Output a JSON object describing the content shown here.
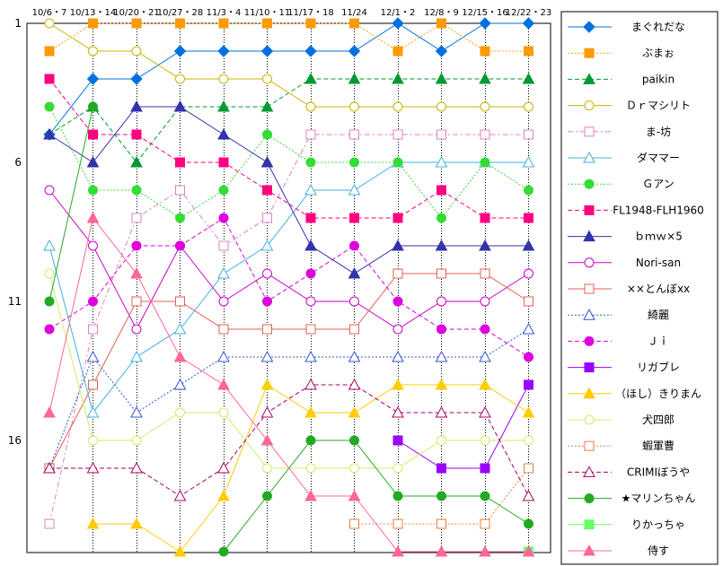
{
  "chart_data": {
    "type": "line",
    "y_axis": {
      "reversed": true,
      "min": 1,
      "max": 20,
      "ticks": [
        1,
        6,
        11,
        16
      ]
    },
    "x_labels": [
      "10/6・7",
      "10/13・14",
      "10/20・21",
      "10/27・28",
      "11/3・4",
      "11/10・11",
      "11/17・18",
      "11/24",
      "12/1・2",
      "12/8・9",
      "12/15・16",
      "12/22・23"
    ],
    "grid": "vertical dotted lines",
    "legend_position": "right",
    "series": [
      {
        "name": "まぐれだな",
        "color": "#0070e0",
        "marker": "diamond",
        "filled": true,
        "dash": "solid",
        "values": [
          5,
          3,
          3,
          2,
          2,
          2,
          2,
          2,
          1,
          2,
          1,
          1
        ]
      },
      {
        "name": "ぶまぉ",
        "color": "#ff9900",
        "marker": "square",
        "filled": true,
        "dash": "dotted",
        "values": [
          2,
          1,
          1,
          1,
          1,
          1,
          1,
          1,
          2,
          1,
          2,
          2
        ]
      },
      {
        "name": "paikin",
        "color": "#009933",
        "marker": "triangle",
        "filled": true,
        "dash": "dashed",
        "values": [
          5,
          4,
          6,
          4,
          4,
          4,
          3,
          3,
          3,
          3,
          3,
          3
        ]
      },
      {
        "name": "Ｄｒマシリト",
        "color": "#c8b400",
        "marker": "circle",
        "filled": false,
        "dash": "solid",
        "values": [
          1,
          2,
          2,
          3,
          3,
          3,
          4,
          4,
          4,
          4,
          4,
          4
        ]
      },
      {
        "name": "ま-坊",
        "color": "#e080c0",
        "marker": "square",
        "filled": false,
        "dash": "dashdot",
        "values": [
          19,
          12,
          8,
          7,
          9,
          8,
          5,
          5,
          5,
          5,
          5,
          5
        ]
      },
      {
        "name": "ダママー",
        "color": "#40b0e0",
        "marker": "triangle",
        "filled": false,
        "dash": "solid",
        "values": [
          9,
          15,
          13,
          12,
          10,
          9,
          7,
          7,
          6,
          6,
          6,
          6
        ]
      },
      {
        "name": "Ｇアン",
        "color": "#33dd33",
        "marker": "circle",
        "filled": true,
        "dash": "dotted",
        "values": [
          4,
          7,
          7,
          8,
          7,
          5,
          6,
          6,
          6,
          8,
          6,
          7
        ]
      },
      {
        "name": "FL1948-FLH1960",
        "color": "#ff0080",
        "marker": "square",
        "filled": true,
        "dash": "dashed",
        "values": [
          3,
          5,
          5,
          6,
          6,
          7,
          8,
          8,
          8,
          7,
          8,
          8
        ]
      },
      {
        "name": "ｂｍｗ×5",
        "color": "#3333aa",
        "marker": "triangle",
        "filled": true,
        "dash": "solid",
        "values": [
          5,
          6,
          4,
          4,
          5,
          6,
          9,
          10,
          9,
          9,
          9,
          9
        ]
      },
      {
        "name": "Nori-san",
        "color": "#cc00cc",
        "marker": "circle",
        "filled": false,
        "dash": "solid",
        "values": [
          7,
          9,
          12,
          9,
          11,
          10,
          11,
          11,
          12,
          11,
          11,
          10
        ]
      },
      {
        "name": "××とんぼxx",
        "color": "#e06050",
        "marker": "square",
        "filled": false,
        "dash": "solid",
        "values": [
          17,
          14,
          11,
          11,
          12,
          12,
          12,
          12,
          10,
          10,
          10,
          11
        ]
      },
      {
        "name": "綺麗",
        "color": "#3355cc",
        "marker": "triangle",
        "filled": false,
        "dash": "dotted",
        "values": [
          17,
          13,
          15,
          14,
          13,
          13,
          13,
          13,
          13,
          13,
          13,
          12
        ]
      },
      {
        "name": "Ｊｉ",
        "color": "#dd00dd",
        "marker": "circle",
        "filled": true,
        "dash": "dashed",
        "values": [
          12,
          11,
          9,
          9,
          8,
          11,
          10,
          9,
          11,
          12,
          12,
          13
        ]
      },
      {
        "name": "リガブレ",
        "color": "#9900ff",
        "marker": "square",
        "filled": true,
        "dash": "solid",
        "values": [
          null,
          null,
          null,
          null,
          null,
          null,
          null,
          null,
          16,
          17,
          17,
          14
        ]
      },
      {
        "name": "（ほし）きりまん",
        "color": "#ffcc00",
        "marker": "triangle",
        "filled": true,
        "dash": "solid",
        "values": [
          null,
          19,
          19,
          20,
          18,
          14,
          15,
          15,
          14,
          14,
          14,
          15
        ]
      },
      {
        "name": "犬四郎",
        "color": "#ccee66",
        "marker": "circle",
        "filled": false,
        "dash": "solid",
        "values": [
          10,
          16,
          16,
          15,
          15,
          17,
          17,
          17,
          17,
          16,
          16,
          16
        ]
      },
      {
        "name": "蝦軍曹",
        "color": "#e08040",
        "marker": "square",
        "filled": false,
        "dash": "dotted",
        "values": [
          null,
          null,
          null,
          null,
          null,
          null,
          null,
          19,
          19,
          19,
          19,
          17
        ]
      },
      {
        "name": "CRIMIぼうや",
        "color": "#aa0066",
        "marker": "triangle",
        "filled": false,
        "dash": "dashed",
        "values": [
          17,
          17,
          17,
          18,
          17,
          15,
          14,
          14,
          15,
          15,
          15,
          18
        ]
      },
      {
        "name": "★マリンちゃん",
        "color": "#22aa22",
        "marker": "circle",
        "filled": true,
        "dash": "solid",
        "values": [
          11,
          4,
          null,
          null,
          20,
          18,
          16,
          16,
          18,
          18,
          18,
          19
        ]
      },
      {
        "name": "りかっちゃ",
        "color": "#66ff66",
        "marker": "square",
        "filled": true,
        "dash": "solid",
        "values": [
          null,
          null,
          null,
          null,
          null,
          null,
          null,
          null,
          null,
          null,
          null,
          20
        ]
      },
      {
        "name": "侍す",
        "color": "#ff6699",
        "marker": "triangle",
        "filled": true,
        "dash": "solid",
        "values": [
          15,
          8,
          10,
          13,
          14,
          16,
          18,
          18,
          20,
          20,
          20,
          20
        ]
      }
    ]
  }
}
